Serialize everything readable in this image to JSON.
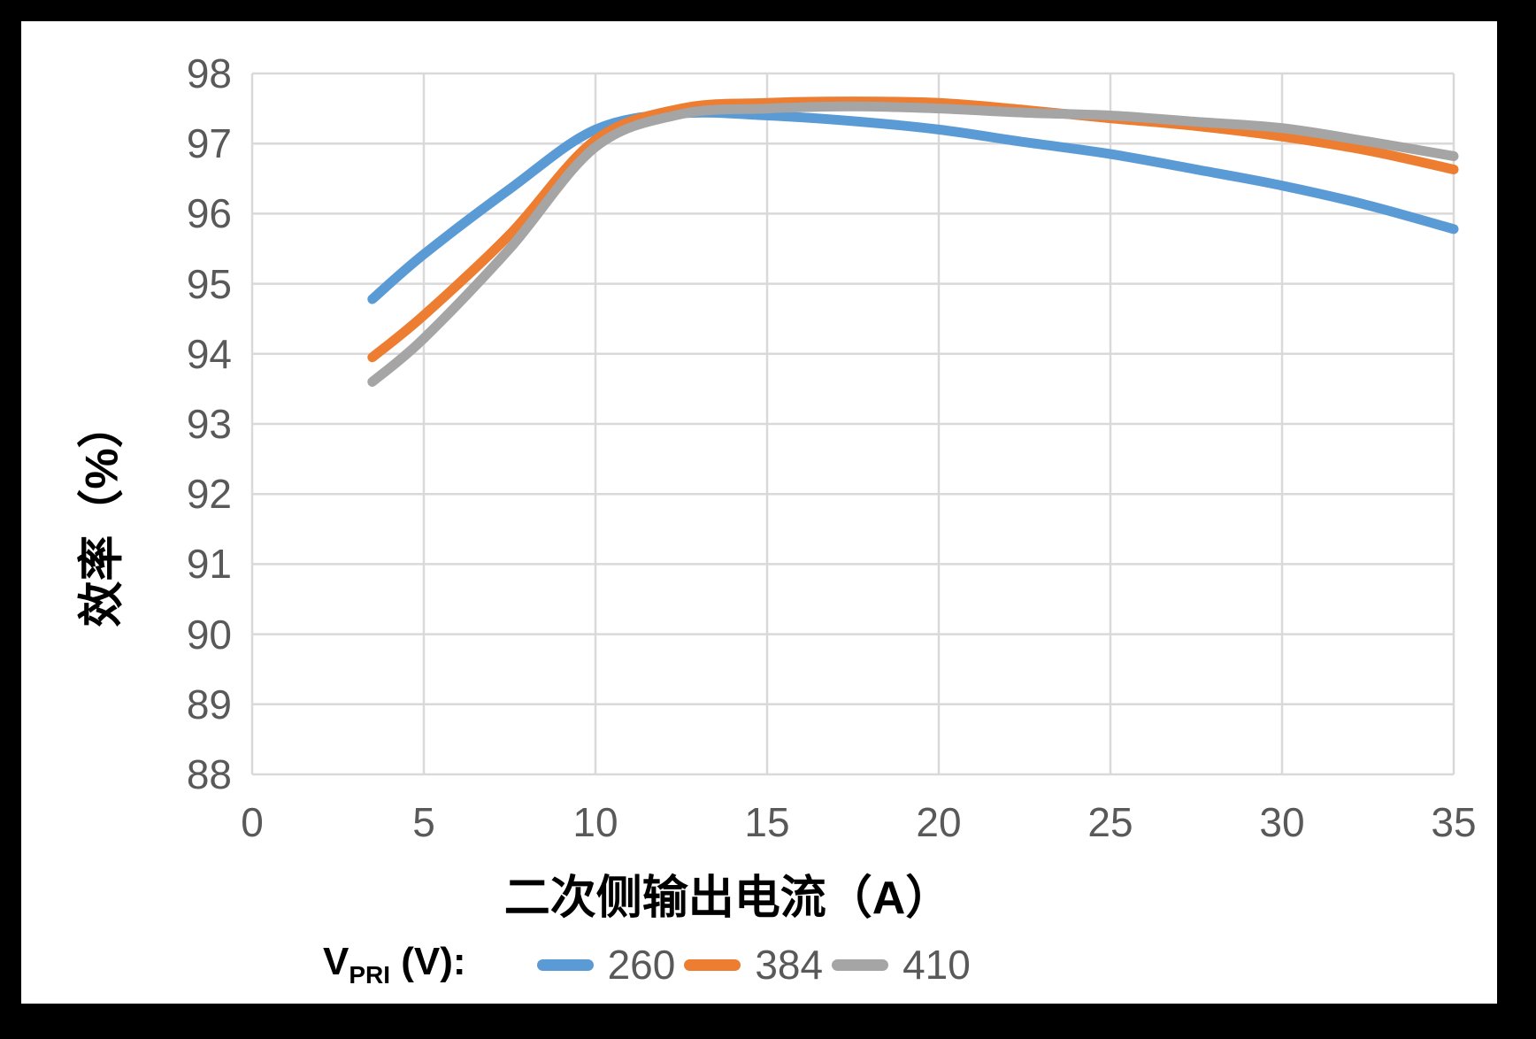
{
  "frame": {
    "background": "#000000",
    "panel_background": "#ffffff"
  },
  "colors": {
    "gridline": "#d9d9d9",
    "tick_text": "#595959",
    "axis_title_text": "#000000",
    "series_260": "#5b9bd5",
    "series_384": "#ed7d31",
    "series_410": "#a5a5a5"
  },
  "chart_data": {
    "type": "line",
    "title": "",
    "xlabel": "二次侧输出电流（A）",
    "ylabel": "效率（%）",
    "xlim": [
      0,
      35
    ],
    "ylim": [
      88,
      98
    ],
    "x_ticks": [
      0,
      5,
      10,
      15,
      20,
      25,
      30,
      35
    ],
    "y_ticks": [
      88,
      89,
      90,
      91,
      92,
      93,
      94,
      95,
      96,
      97,
      98
    ],
    "grid": true,
    "legend_position": "bottom",
    "x": [
      3.5,
      5,
      7.5,
      10,
      12.5,
      15,
      17.5,
      20,
      22.5,
      25,
      27.5,
      30,
      32.5,
      35
    ],
    "series": [
      {
        "name": "260",
        "color": "#5b9bd5",
        "values": [
          94.78,
          95.42,
          96.35,
          97.2,
          97.43,
          97.4,
          97.32,
          97.2,
          97.02,
          96.85,
          96.63,
          96.4,
          96.12,
          95.78
        ]
      },
      {
        "name": "384",
        "color": "#ed7d31",
        "values": [
          93.95,
          94.55,
          95.7,
          97.05,
          97.5,
          97.58,
          97.6,
          97.58,
          97.48,
          97.36,
          97.25,
          97.1,
          96.9,
          96.63
        ]
      },
      {
        "name": "410",
        "color": "#a5a5a5",
        "values": [
          93.6,
          94.22,
          95.5,
          96.95,
          97.42,
          97.5,
          97.53,
          97.5,
          97.44,
          97.4,
          97.31,
          97.22,
          97.03,
          96.82
        ]
      }
    ],
    "legend": {
      "title_v": "V",
      "title_sub": "PRI",
      "title_rest": " (V):"
    }
  }
}
